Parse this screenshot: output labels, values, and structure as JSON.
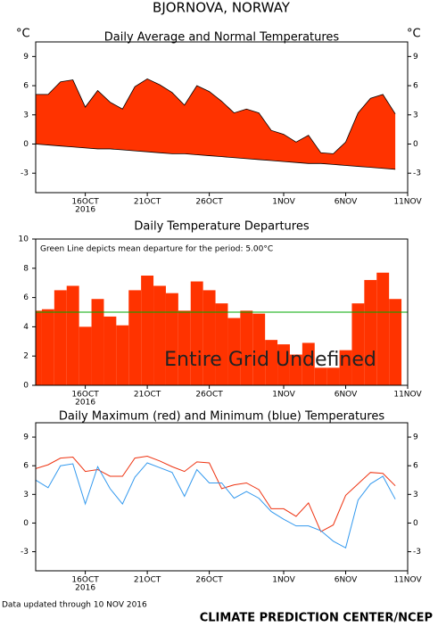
{
  "header": {
    "title": "BJORNOVA, NORWAY"
  },
  "chart_data": [
    {
      "type": "area",
      "title": "Daily Average and Normal Temperatures",
      "y_unit_label": "°C",
      "right_axis": true,
      "x": [
        "2016-10-12",
        "2016-10-13",
        "2016-10-14",
        "2016-10-15",
        "2016-10-16",
        "2016-10-17",
        "2016-10-18",
        "2016-10-19",
        "2016-10-20",
        "2016-10-21",
        "2016-10-22",
        "2016-10-23",
        "2016-10-24",
        "2016-10-25",
        "2016-10-26",
        "2016-10-27",
        "2016-10-28",
        "2016-10-29",
        "2016-10-30",
        "2016-10-31",
        "2016-11-01",
        "2016-11-02",
        "2016-11-03",
        "2016-11-04",
        "2016-11-05",
        "2016-11-06",
        "2016-11-07",
        "2016-11-08",
        "2016-11-09",
        "2016-11-10"
      ],
      "xlim": [
        "2016-10-12",
        "2016-11-11"
      ],
      "xticks": [
        {
          "value": "2016-10-16",
          "label": "16OCT"
        },
        {
          "value": "2016-10-21",
          "label": "21OCT"
        },
        {
          "value": "2016-10-26",
          "label": "26OCT"
        },
        {
          "value": "2016-11-01",
          "label": "1NOV"
        },
        {
          "value": "2016-11-06",
          "label": "6NOV"
        },
        {
          "value": "2016-11-11",
          "label": "11NOV"
        }
      ],
      "x_year_label": "2016",
      "ylim": [
        -5,
        10.5
      ],
      "yticks": [
        -3,
        0,
        3,
        6,
        9
      ],
      "fill_color": "#ff3300",
      "series": [
        {
          "color": "#000000",
          "values": [
            5.1,
            5.1,
            6.4,
            6.6,
            3.8,
            5.5,
            4.3,
            3.6,
            5.9,
            6.7,
            6.1,
            5.3,
            4.0,
            6.0,
            5.4,
            4.4,
            3.2,
            3.6,
            3.2,
            1.4,
            1.0,
            0.2,
            0.9,
            -0.9,
            -1.0,
            0.2,
            3.2,
            4.7,
            5.1,
            3.1
          ]
        },
        {
          "color": "#000000",
          "values": [
            0.0,
            -0.1,
            -0.2,
            -0.3,
            -0.4,
            -0.5,
            -0.5,
            -0.6,
            -0.7,
            -0.8,
            -0.9,
            -1.0,
            -1.0,
            -1.1,
            -1.2,
            -1.3,
            -1.4,
            -1.5,
            -1.6,
            -1.7,
            -1.8,
            -1.9,
            -2.0,
            -2.0,
            -2.1,
            -2.2,
            -2.3,
            -2.4,
            -2.5,
            -2.6
          ]
        }
      ]
    },
    {
      "type": "bar",
      "title": "Daily Temperature Departures",
      "right_axis": false,
      "annotations": [
        "Green Line depicts mean departure for the period: 5.00°C",
        "Entire Grid Undefined"
      ],
      "x": [
        "2016-10-12",
        "2016-10-13",
        "2016-10-14",
        "2016-10-15",
        "2016-10-16",
        "2016-10-17",
        "2016-10-18",
        "2016-10-19",
        "2016-10-20",
        "2016-10-21",
        "2016-10-22",
        "2016-10-23",
        "2016-10-24",
        "2016-10-25",
        "2016-10-26",
        "2016-10-27",
        "2016-10-28",
        "2016-10-29",
        "2016-10-30",
        "2016-10-31",
        "2016-11-01",
        "2016-11-02",
        "2016-11-03",
        "2016-11-04",
        "2016-11-05",
        "2016-11-06",
        "2016-11-07",
        "2016-11-08",
        "2016-11-09",
        "2016-11-10"
      ],
      "xlim": [
        "2016-10-12",
        "2016-11-11"
      ],
      "xticks": [
        {
          "value": "2016-10-16",
          "label": "16OCT"
        },
        {
          "value": "2016-10-21",
          "label": "21OCT"
        },
        {
          "value": "2016-10-26",
          "label": "26OCT"
        },
        {
          "value": "2016-11-01",
          "label": "1NOV"
        },
        {
          "value": "2016-11-06",
          "label": "6NOV"
        },
        {
          "value": "2016-11-11",
          "label": "11NOV"
        }
      ],
      "x_year_label": "2016",
      "ylim": [
        0,
        10
      ],
      "yticks": [
        0,
        2,
        4,
        6,
        8,
        10
      ],
      "color": "#ff3300",
      "values": [
        5.1,
        5.2,
        6.5,
        6.8,
        4.0,
        5.9,
        4.7,
        4.1,
        6.5,
        7.5,
        6.8,
        6.3,
        5.1,
        7.1,
        6.5,
        5.6,
        4.6,
        5.1,
        4.9,
        3.1,
        2.8,
        2.1,
        2.9,
        1.2,
        1.2,
        2.4,
        5.6,
        7.2,
        7.7,
        5.9
      ],
      "reference_line": {
        "value": 5.0,
        "color": "#00aa00"
      }
    },
    {
      "type": "line",
      "title": "Daily Maximum (red) and Minimum (blue) Temperatures",
      "right_axis": true,
      "x": [
        "2016-10-12",
        "2016-10-13",
        "2016-10-14",
        "2016-10-15",
        "2016-10-16",
        "2016-10-17",
        "2016-10-18",
        "2016-10-19",
        "2016-10-20",
        "2016-10-21",
        "2016-10-22",
        "2016-10-23",
        "2016-10-24",
        "2016-10-25",
        "2016-10-26",
        "2016-10-27",
        "2016-10-28",
        "2016-10-29",
        "2016-10-30",
        "2016-10-31",
        "2016-11-01",
        "2016-11-02",
        "2016-11-03",
        "2016-11-04",
        "2016-11-05",
        "2016-11-06",
        "2016-11-07",
        "2016-11-08",
        "2016-11-09",
        "2016-11-10"
      ],
      "xlim": [
        "2016-10-12",
        "2016-11-11"
      ],
      "xticks": [
        {
          "value": "2016-10-16",
          "label": "16OCT"
        },
        {
          "value": "2016-10-21",
          "label": "21OCT"
        },
        {
          "value": "2016-10-26",
          "label": "26OCT"
        },
        {
          "value": "2016-11-01",
          "label": "1NOV"
        },
        {
          "value": "2016-11-06",
          "label": "6NOV"
        },
        {
          "value": "2016-11-11",
          "label": "11NOV"
        }
      ],
      "x_year_label": "2016",
      "ylim": [
        -5,
        10.5
      ],
      "yticks": [
        -3,
        0,
        3,
        6,
        9
      ],
      "series": [
        {
          "color": "#ee3311",
          "values": [
            5.7,
            6.1,
            6.8,
            6.9,
            5.4,
            5.6,
            4.9,
            4.9,
            6.8,
            7.0,
            6.5,
            5.9,
            5.4,
            6.4,
            6.3,
            3.6,
            4.0,
            4.2,
            3.5,
            1.5,
            1.5,
            0.7,
            2.1,
            -0.9,
            -0.2,
            2.9,
            4.1,
            5.3,
            5.2,
            3.9
          ]
        },
        {
          "color": "#3399ee",
          "values": [
            4.5,
            3.7,
            6.0,
            6.2,
            2.0,
            5.9,
            3.6,
            2.0,
            4.8,
            6.3,
            5.8,
            5.3,
            2.8,
            5.6,
            4.2,
            4.2,
            2.6,
            3.3,
            2.6,
            1.2,
            0.4,
            -0.3,
            -0.3,
            -0.8,
            -1.9,
            -2.6,
            2.4,
            4.1,
            4.9,
            2.5
          ]
        }
      ]
    }
  ],
  "footer": {
    "updated": "Data updated through 10 NOV 2016",
    "source": "CLIMATE PREDICTION CENTER/NCEP"
  }
}
